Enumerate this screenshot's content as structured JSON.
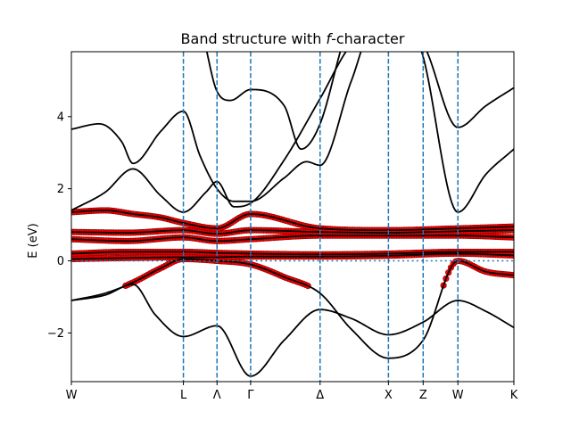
{
  "chart_data": {
    "type": "line",
    "title_pre": "Band structure with ",
    "title_italic": "f",
    "title_post": "-character",
    "xlabel": "",
    "ylabel": "E (eV)",
    "ylim": [
      -3.35,
      5.8
    ],
    "yticks": [
      -2,
      0,
      2,
      4
    ],
    "ytick_labels": [
      "−2",
      "0",
      "2",
      "4"
    ],
    "kpoints": [
      {
        "label": "W",
        "x": 0.0
      },
      {
        "label": "L",
        "x": 1.0
      },
      {
        "label": "Λ",
        "x": 1.3
      },
      {
        "label": "Γ",
        "x": 1.6
      },
      {
        "label": "Δ",
        "x": 2.22
      },
      {
        "label": "X",
        "x": 2.83
      },
      {
        "label": "Z",
        "x": 3.14
      },
      {
        "label": "W",
        "x": 3.45
      },
      {
        "label": "K",
        "x": 3.95
      }
    ],
    "fermi_level": 0,
    "f_color": "#ff0000",
    "band_color": "#000000",
    "vline_color": "#1f77b4",
    "bands": [
      {
        "x": [
          0,
          0.3,
          0.55,
          0.75,
          1.0,
          1.3,
          1.6,
          1.9,
          2.22,
          2.5,
          2.83,
          3.14,
          3.45,
          3.7,
          3.95
        ],
        "y": [
          -1.1,
          -0.95,
          -0.65,
          -1.5,
          -2.1,
          -1.8,
          -3.2,
          -2.2,
          -1.35,
          -1.6,
          -2.05,
          -1.7,
          -1.1,
          -1.4,
          -1.85
        ],
        "f": false
      },
      {
        "x": [
          0,
          0.3,
          0.55,
          0.8,
          1.0,
          1.3,
          1.6,
          1.9,
          2.22,
          2.5,
          2.83,
          3.14,
          3.45,
          3.7,
          3.95
        ],
        "y": [
          -1.1,
          -0.9,
          -0.6,
          -0.2,
          0.05,
          0.0,
          -0.1,
          -0.45,
          -0.9,
          -1.9,
          -2.7,
          -2.2,
          0.0,
          -0.3,
          -0.4
        ],
        "f": true
      },
      {
        "x": [
          0,
          0.5,
          1.0,
          1.3,
          1.6,
          2.2,
          2.8,
          3.45,
          3.95
        ],
        "y": [
          0.05,
          0.08,
          0.1,
          0.1,
          0.12,
          0.12,
          0.14,
          0.2,
          0.15
        ],
        "f": true
      },
      {
        "x": [
          0,
          0.5,
          1.0,
          1.3,
          1.6,
          2.22,
          2.83,
          3.45,
          3.95
        ],
        "y": [
          0.2,
          0.25,
          0.25,
          0.22,
          0.2,
          0.18,
          0.2,
          0.25,
          0.25
        ],
        "f": true
      },
      {
        "x": [
          0,
          0.5,
          1.0,
          1.3,
          1.6,
          2.22,
          2.83,
          3.45,
          3.95
        ],
        "y": [
          0.6,
          0.55,
          0.65,
          0.55,
          0.6,
          0.7,
          0.7,
          0.7,
          0.65
        ],
        "f": true
      },
      {
        "x": [
          0,
          0.5,
          1.0,
          1.3,
          1.6,
          2.22,
          2.83,
          3.45,
          3.95
        ],
        "y": [
          0.8,
          0.78,
          0.85,
          0.75,
          0.85,
          0.8,
          0.78,
          0.82,
          0.85
        ],
        "f": true
      },
      {
        "x": [
          0,
          0.3,
          0.55,
          0.8,
          1.0,
          1.3,
          1.6,
          2.22,
          2.83,
          3.45,
          3.95
        ],
        "y": [
          1.35,
          1.4,
          1.3,
          1.2,
          1.05,
          0.9,
          1.3,
          0.9,
          0.85,
          0.9,
          0.95
        ],
        "f": true
      },
      {
        "x": [
          0,
          0.3,
          0.55,
          0.8,
          1.0,
          1.2,
          1.3,
          1.45,
          1.6,
          1.9,
          2.22,
          2.5,
          2.83,
          3.1,
          3.45,
          3.7,
          3.95
        ],
        "y": [
          1.4,
          1.9,
          2.55,
          1.8,
          1.35,
          1.9,
          2.2,
          1.5,
          1.6,
          2.8,
          4.5,
          6.0,
          6.5,
          6.0,
          1.35,
          2.4,
          3.1
        ],
        "f": false
      },
      {
        "x": [
          0,
          0.25,
          0.45,
          0.55,
          0.8,
          1.0,
          1.15,
          1.3,
          1.45,
          1.6,
          1.9,
          2.1,
          2.22,
          2.5,
          2.7,
          2.83,
          3.14,
          3.45,
          3.7,
          3.95
        ],
        "y": [
          3.65,
          3.8,
          3.3,
          2.7,
          3.6,
          4.15,
          2.9,
          2.0,
          1.65,
          1.65,
          2.3,
          2.75,
          2.65,
          5.0,
          6.5,
          6.5,
          6.0,
          3.7,
          4.3,
          4.8
        ],
        "f": false
      },
      {
        "x": [
          1.18,
          1.3,
          1.42,
          1.6,
          1.9,
          2.05,
          2.22,
          2.4
        ],
        "y": [
          6.2,
          4.7,
          4.45,
          4.75,
          4.3,
          3.1,
          3.8,
          5.8
        ],
        "f": false
      }
    ]
  }
}
